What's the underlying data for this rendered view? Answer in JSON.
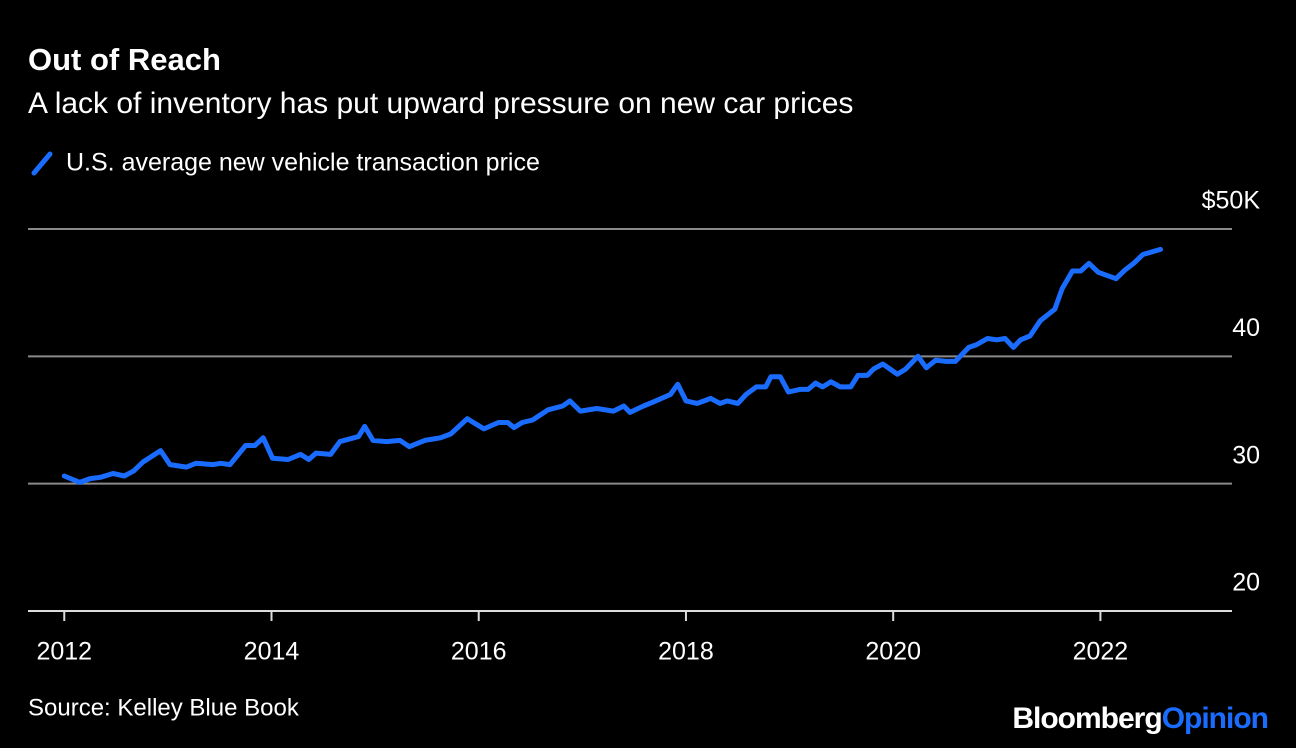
{
  "chart_data": {
    "type": "line",
    "title": "Out of Reach",
    "subtitle": "A lack of inventory has put upward pressure on new car prices",
    "source": "Source: Kelley Blue Book",
    "brand": [
      "Bloomberg",
      "Opinion"
    ],
    "xlim": [
      2011.65,
      2023.27
    ],
    "xticks": [
      2012,
      2014,
      2016,
      2018,
      2020,
      2022
    ],
    "ylim": [
      20,
      50
    ],
    "yticks": [
      20,
      30,
      40,
      {
        "value": 50,
        "label": "$50K"
      }
    ],
    "grid": true,
    "series": [
      {
        "name": "U.S. average new vehicle transaction price",
        "color": "#1a6cff",
        "x": [
          2012.0,
          2012.15,
          2012.25,
          2012.35,
          2012.47,
          2012.58,
          2012.67,
          2012.76,
          2012.93,
          2013.02,
          2013.18,
          2013.27,
          2013.44,
          2013.51,
          2013.6,
          2013.75,
          2013.84,
          2013.92,
          2014.01,
          2014.16,
          2014.28,
          2014.36,
          2014.43,
          2014.57,
          2014.66,
          2014.84,
          2014.9,
          2014.98,
          2015.11,
          2015.24,
          2015.33,
          2015.48,
          2015.63,
          2015.73,
          2015.89,
          2016.05,
          2016.19,
          2016.28,
          2016.34,
          2016.42,
          2016.52,
          2016.67,
          2016.81,
          2016.88,
          2016.98,
          2017.14,
          2017.3,
          2017.4,
          2017.46,
          2017.59,
          2017.68,
          2017.85,
          2017.92,
          2018.0,
          2018.11,
          2018.24,
          2018.33,
          2018.4,
          2018.5,
          2018.58,
          2018.68,
          2018.77,
          2018.82,
          2018.91,
          2018.99,
          2019.1,
          2019.18,
          2019.25,
          2019.32,
          2019.4,
          2019.49,
          2019.59,
          2019.66,
          2019.75,
          2019.81,
          2019.9,
          2020.04,
          2020.12,
          2020.24,
          2020.32,
          2020.41,
          2020.51,
          2020.6,
          2020.73,
          2020.8,
          2020.91,
          2021.0,
          2021.08,
          2021.16,
          2021.23,
          2021.32,
          2021.42,
          2021.56,
          2021.63,
          2021.73,
          2021.81,
          2021.89,
          2021.98,
          2022.15,
          2022.24,
          2022.32,
          2022.41,
          2022.58
        ],
        "values": [
          30.6,
          30.1,
          30.4,
          30.5,
          30.8,
          30.6,
          31.0,
          31.7,
          32.6,
          31.5,
          31.3,
          31.6,
          31.5,
          31.6,
          31.5,
          33.0,
          33.0,
          33.6,
          32.0,
          31.9,
          32.3,
          31.9,
          32.4,
          32.3,
          33.3,
          33.7,
          34.5,
          33.4,
          33.3,
          33.4,
          32.9,
          33.4,
          33.6,
          33.9,
          35.1,
          34.3,
          34.8,
          34.8,
          34.4,
          34.8,
          35.0,
          35.8,
          36.1,
          36.5,
          35.7,
          35.9,
          35.7,
          36.1,
          35.6,
          36.1,
          36.4,
          37.0,
          37.8,
          36.5,
          36.3,
          36.7,
          36.3,
          36.5,
          36.3,
          37.0,
          37.6,
          37.6,
          38.4,
          38.4,
          37.2,
          37.4,
          37.4,
          37.9,
          37.6,
          38.0,
          37.6,
          37.6,
          38.5,
          38.5,
          39.0,
          39.4,
          38.6,
          39.0,
          40.0,
          39.1,
          39.7,
          39.6,
          39.6,
          40.7,
          40.9,
          41.4,
          41.3,
          41.4,
          40.7,
          41.3,
          41.6,
          42.8,
          43.7,
          45.3,
          46.7,
          46.7,
          47.3,
          46.6,
          46.1,
          46.8,
          47.3,
          48.0,
          48.4
        ]
      }
    ]
  }
}
